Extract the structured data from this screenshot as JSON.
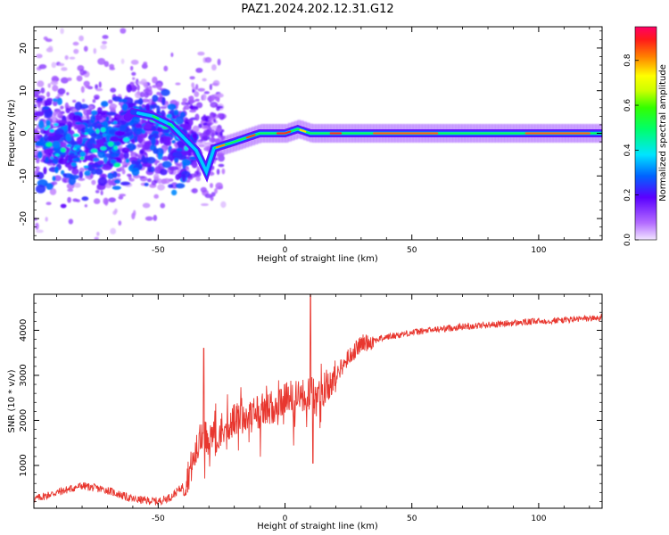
{
  "title": "PAZ1.2024.202.12.31.G12",
  "chart_data": [
    {
      "type": "heatmap",
      "xlabel": "Height of straight line (km)",
      "ylabel": "Frequency (Hz)",
      "xlim": [
        -99,
        125
      ],
      "ylim": [
        -25,
        25
      ],
      "xticks": [
        -50,
        0,
        50,
        100
      ],
      "yticks": [
        -20,
        -10,
        0,
        10,
        20
      ],
      "colorbar": {
        "label": "Normalized spectral amplitude",
        "range": [
          0,
          0.95
        ],
        "ticks": [
          0.0,
          0.2,
          0.4,
          0.6,
          0.8
        ],
        "colormap": "gist_rainbow_r"
      },
      "ridge": [
        {
          "x": -70,
          "y": -1
        },
        {
          "x": -60,
          "y": 5
        },
        {
          "x": -52,
          "y": 4
        },
        {
          "x": -45,
          "y": 2
        },
        {
          "x": -40,
          "y": -1
        },
        {
          "x": -35,
          "y": -4
        },
        {
          "x": -31,
          "y": -9
        },
        {
          "x": -28,
          "y": -3.5
        },
        {
          "x": -20,
          "y": -2
        },
        {
          "x": -10,
          "y": 0
        },
        {
          "x": 0,
          "y": 0
        },
        {
          "x": 5,
          "y": 1
        },
        {
          "x": 10,
          "y": 0
        },
        {
          "x": 30,
          "y": 0
        },
        {
          "x": 125,
          "y": 0
        }
      ]
    },
    {
      "type": "line",
      "xlabel": "Height of straight line (km)",
      "ylabel": "SNR (10 * v/v)",
      "xlim": [
        -99,
        125
      ],
      "ylim": [
        50,
        4800
      ],
      "xticks": [
        -50,
        0,
        50,
        100
      ],
      "yticks": [
        1000,
        2000,
        3000,
        4000
      ],
      "color": "#e8372f",
      "series": [
        {
          "x": [
            -99,
            -90,
            -80,
            -70,
            -60,
            -50,
            -45,
            -40,
            -36,
            -33,
            -30,
            -25,
            -20,
            -15,
            -10,
            -5,
            0,
            5,
            10,
            15,
            20,
            25,
            30,
            40,
            50,
            60,
            70,
            80,
            90,
            100,
            110,
            125
          ],
          "values": [
            250,
            400,
            550,
            450,
            250,
            200,
            300,
            550,
            1100,
            1700,
            1600,
            1800,
            2000,
            2100,
            2200,
            2300,
            2500,
            2500,
            2600,
            2700,
            3000,
            3400,
            3700,
            3850,
            3950,
            4020,
            4080,
            4120,
            4160,
            4200,
            4230,
            4280
          ]
        }
      ],
      "spikes": [
        {
          "x": -32,
          "value": 3600
        },
        {
          "x": 10,
          "value": 4800
        },
        {
          "x": 11,
          "value": 1050
        }
      ]
    }
  ]
}
